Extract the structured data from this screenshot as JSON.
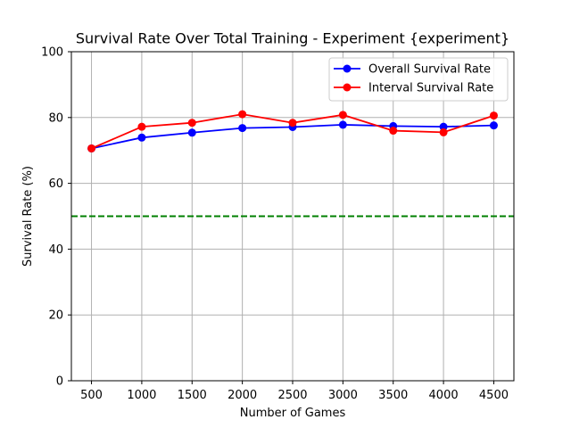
{
  "chart_data": {
    "type": "line",
    "title": "Survival Rate Over Total Training - Experiment {experiment}",
    "xlabel": "Number of Games",
    "ylabel": "Survival Rate (%)",
    "x": [
      500,
      1000,
      1500,
      2000,
      2500,
      3000,
      3500,
      4000,
      4500
    ],
    "xlim": [
      300,
      4700
    ],
    "ylim": [
      0,
      100
    ],
    "xticks": [
      500,
      1000,
      1500,
      2000,
      2500,
      3000,
      3500,
      4000,
      4500
    ],
    "yticks": [
      0,
      20,
      40,
      60,
      80,
      100
    ],
    "grid": true,
    "legend_position": "top-right",
    "series": [
      {
        "name": "Overall Survival Rate",
        "color": "#0000ff",
        "marker": "circle",
        "values": [
          70.6,
          73.9,
          75.4,
          76.8,
          77.1,
          77.8,
          77.4,
          77.2,
          77.6
        ]
      },
      {
        "name": "Interval Survival Rate",
        "color": "#ff0000",
        "marker": "circle",
        "values": [
          70.6,
          77.2,
          78.4,
          81.0,
          78.4,
          80.8,
          76.0,
          75.5,
          80.6
        ]
      }
    ],
    "reference_line": {
      "y": 50,
      "color": "#008000",
      "style": "dashed"
    }
  }
}
